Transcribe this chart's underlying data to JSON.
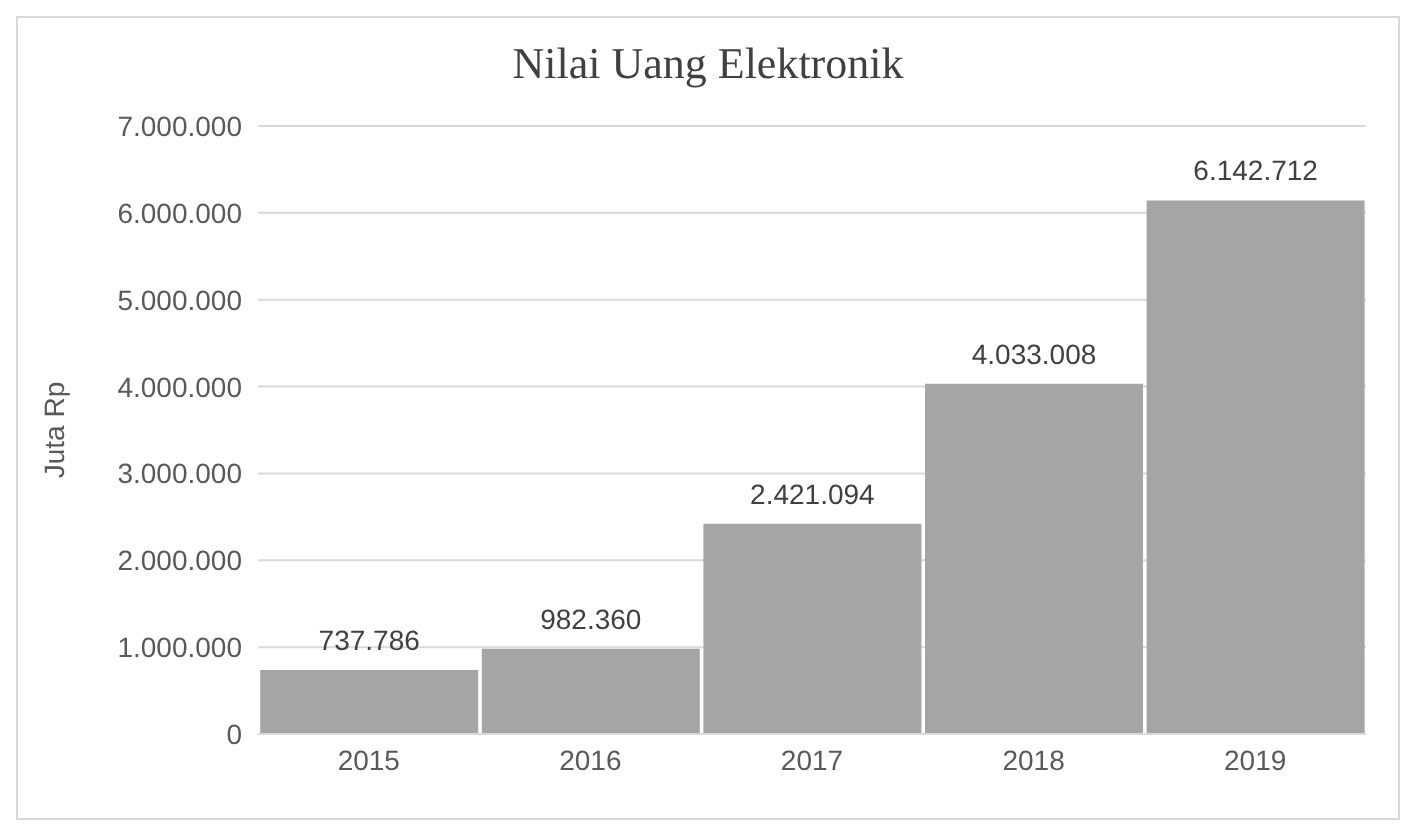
{
  "chart_data": {
    "type": "bar",
    "title": "Nilai Uang Elektronik",
    "ylabel": "Juta Rp",
    "categories": [
      "2015",
      "2016",
      "2017",
      "2018",
      "2019"
    ],
    "values": [
      737786,
      982360,
      2421094,
      4033008,
      6142712
    ],
    "value_labels": [
      "737.786",
      "982.360",
      "2.421.094",
      "4.033.008",
      "6.142.712"
    ],
    "color": "#a5a5a5",
    "ylim": [
      0,
      7000000
    ],
    "yticks": [
      {
        "value": 0,
        "label": "0"
      },
      {
        "value": 1000000,
        "label": "1.000.000"
      },
      {
        "value": 2000000,
        "label": "2.000.000"
      },
      {
        "value": 3000000,
        "label": "3.000.000"
      },
      {
        "value": 4000000,
        "label": "4.000.000"
      },
      {
        "value": 5000000,
        "label": "5.000.000"
      },
      {
        "value": 6000000,
        "label": "6.000.000"
      },
      {
        "value": 7000000,
        "label": "7.000.000"
      }
    ],
    "grid": "y",
    "legend": false
  }
}
